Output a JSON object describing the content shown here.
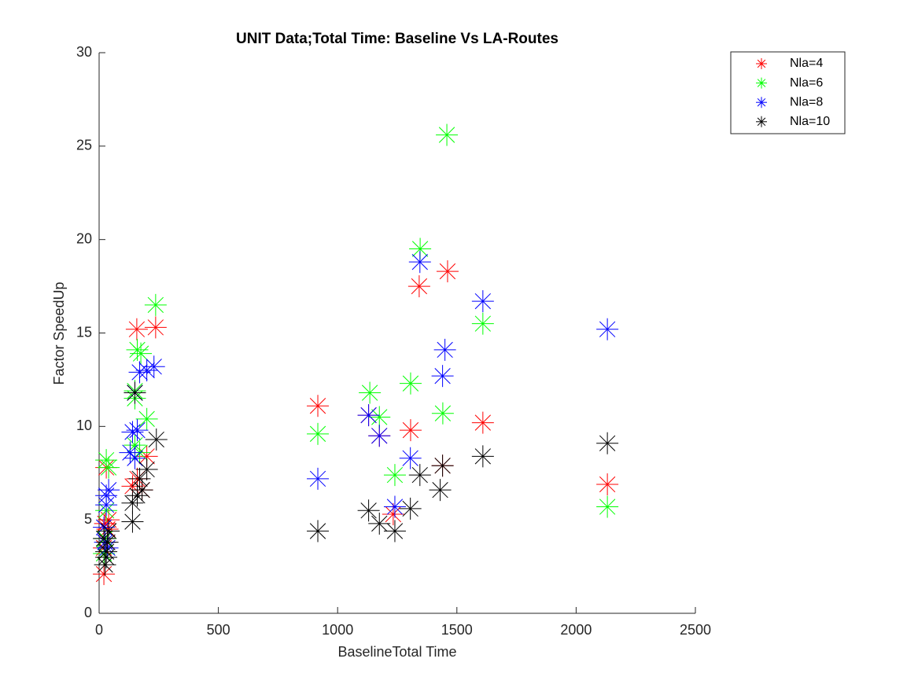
{
  "chart_data": {
    "type": "scatter",
    "title": "UNIT Data;Total Time: Baseline Vs LA-Routes",
    "x_label": "BaselineTotal Time",
    "y_label": "Factor SpeedUp",
    "xlim": [
      0,
      2500
    ],
    "xticks": [
      0,
      500,
      1000,
      1500,
      2000,
      2500
    ],
    "ylim": [
      0,
      30
    ],
    "yticks": [
      0,
      5,
      10,
      15,
      20,
      25,
      30
    ],
    "legend": "northeast",
    "series": [
      {
        "name": "Nla=4",
        "color": "#ff0000",
        "x": [
          917,
          1130,
          1175,
          1233,
          1306,
          1342,
          1461,
          1440,
          1609,
          2131,
          158,
          237,
          30,
          20,
          25,
          35,
          160,
          180,
          200,
          140,
          20,
          40
        ],
        "y": [
          11.1,
          10.6,
          9.5,
          5.3,
          9.8,
          17.5,
          18.3,
          7.9,
          10.2,
          6.9,
          15.2,
          15.3,
          7.8,
          2.1,
          4.8,
          4.5,
          7.2,
          6.6,
          8.4,
          6.8,
          3.5,
          5.0
        ]
      },
      {
        "name": "Nla=6",
        "color": "#00ff00",
        "x": [
          1458,
          1346,
          1609,
          1306,
          1135,
          1175,
          917,
          1240,
          1441,
          2131,
          237,
          160,
          175,
          150,
          150,
          200,
          30,
          40,
          20,
          30,
          150,
          170,
          25
        ],
        "y": [
          25.6,
          19.5,
          15.5,
          12.3,
          11.8,
          10.5,
          9.6,
          7.4,
          10.7,
          5.7,
          16.5,
          14.1,
          13.9,
          11.9,
          11.5,
          10.4,
          8.2,
          7.8,
          3.2,
          5.5,
          9.0,
          8.6,
          4.0
        ]
      },
      {
        "name": "Nla=8",
        "color": "#0000ff",
        "x": [
          2131,
          1609,
          1345,
          1450,
          1440,
          1130,
          1175,
          1305,
          917,
          1240,
          230,
          200,
          170,
          150,
          140,
          160,
          130,
          150,
          40,
          30,
          25,
          30,
          20,
          35
        ],
        "y": [
          15.2,
          16.7,
          18.8,
          14.1,
          12.7,
          10.6,
          9.5,
          8.3,
          7.2,
          5.7,
          13.2,
          13.0,
          12.9,
          11.8,
          9.7,
          9.8,
          8.6,
          8.3,
          6.6,
          6.3,
          3.8,
          5.8,
          4.6,
          3.5
        ]
      },
      {
        "name": "Nla=10",
        "color": "#000000",
        "x": [
          2131,
          1609,
          1440,
          1430,
          1345,
          1305,
          1240,
          1175,
          1130,
          917,
          150,
          240,
          200,
          170,
          160,
          140,
          140,
          180,
          25,
          30,
          20,
          35,
          40,
          30
        ],
        "y": [
          9.1,
          8.4,
          7.9,
          6.6,
          7.4,
          5.6,
          4.4,
          4.8,
          5.5,
          4.4,
          11.8,
          9.3,
          7.7,
          7.2,
          6.3,
          5.9,
          4.9,
          6.6,
          2.6,
          3.0,
          4.0,
          3.8,
          4.4,
          3.3
        ]
      }
    ]
  }
}
